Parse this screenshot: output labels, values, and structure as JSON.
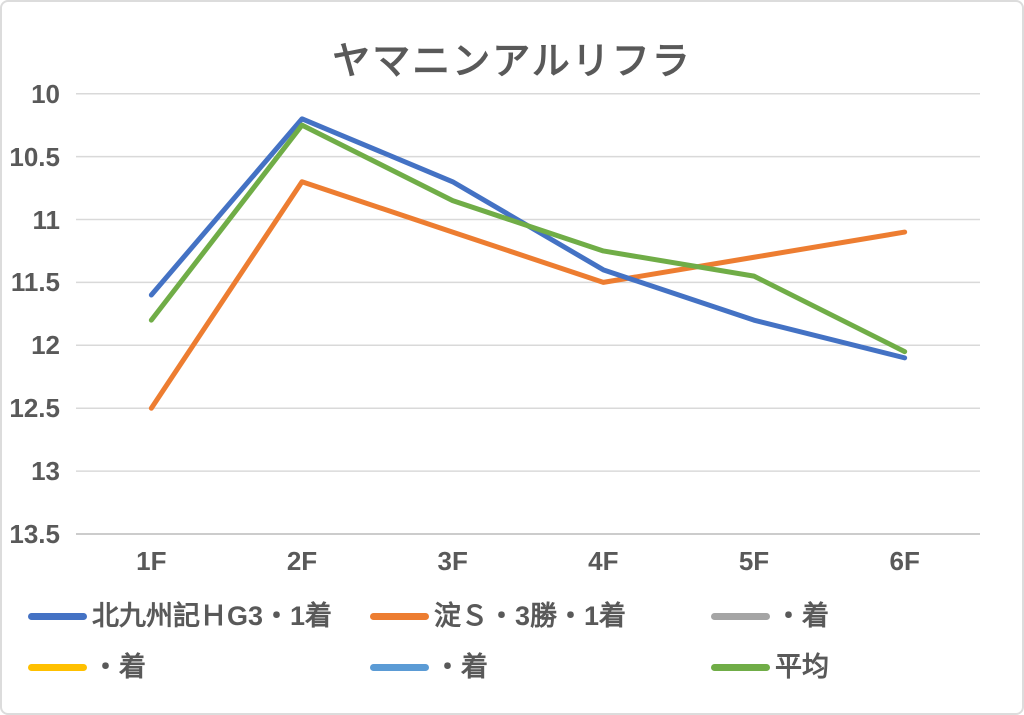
{
  "chart_data": {
    "type": "line",
    "title": "ヤマニンアルリフラ",
    "categories": [
      "1F",
      "2F",
      "3F",
      "4F",
      "5F",
      "6F"
    ],
    "series": [
      {
        "name": "北九州記ＨG3・1着",
        "color": "#4472C4",
        "values": [
          11.6,
          10.2,
          10.7,
          11.4,
          11.8,
          12.1
        ]
      },
      {
        "name": "淀Ｓ・3勝・1着",
        "color": "#ED7D31",
        "values": [
          12.5,
          10.7,
          11.1,
          11.5,
          11.3,
          11.1
        ]
      },
      {
        "name": "・着",
        "color": "#A5A5A5",
        "values": []
      },
      {
        "name": "・着",
        "color": "#FFC000",
        "values": []
      },
      {
        "name": "・着",
        "color": "#5B9BD5",
        "values": []
      },
      {
        "name": "平均",
        "color": "#70AD47",
        "values": [
          11.8,
          10.25,
          10.85,
          11.25,
          11.45,
          12.05
        ]
      }
    ],
    "yaxis": {
      "min": 10,
      "max": 13.5,
      "step": 0.5,
      "inverted": true,
      "ticks": [
        "10",
        "10.5",
        "11",
        "11.5",
        "12",
        "12.5",
        "13",
        "13.5"
      ]
    },
    "xlabel": "",
    "ylabel": "",
    "grid": true,
    "legend_position": "bottom",
    "text_color": "#595959",
    "gridline_color": "#D9D9D9"
  }
}
